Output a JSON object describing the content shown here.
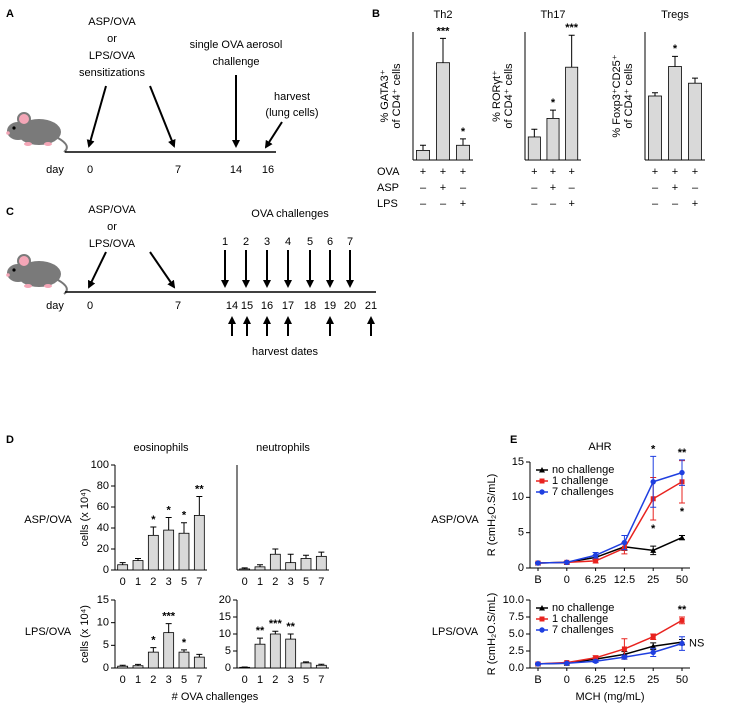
{
  "panel_letters": [
    "A",
    "B",
    "C",
    "D",
    "E"
  ],
  "panel_a": {
    "sensitization_label": [
      "ASP/OVA",
      "or",
      "LPS/OVA",
      "sensitizations"
    ],
    "challenge_label": [
      "single OVA aerosol",
      "challenge"
    ],
    "harvest_label": [
      "harvest",
      "(lung cells)"
    ],
    "day_label": "day",
    "days": [
      "0",
      "7",
      "14",
      "16"
    ]
  },
  "panel_b": {
    "condition_labels": [
      "OVA",
      "ASP",
      "LPS"
    ],
    "signs": [
      [
        "+",
        "+",
        "+"
      ],
      [
        "–",
        "+",
        "–"
      ],
      [
        "–",
        "–",
        "+"
      ]
    ]
  },
  "panel_c": {
    "treatment_label": [
      "ASP/OVA",
      "or",
      "LPS/OVA"
    ],
    "challenges_label": "OVA challenges",
    "challenge_numbers": [
      "1",
      "2",
      "3",
      "4",
      "5",
      "6",
      "7"
    ],
    "day_label": "day",
    "days": [
      "0",
      "7",
      "14",
      "15",
      "16",
      "17",
      "18",
      "19",
      "20",
      "21"
    ],
    "harvest_label": "harvest dates"
  },
  "panel_d": {
    "rows": [
      "ASP/OVA",
      "LPS/OVA"
    ],
    "xlabel": "# OVA challenges"
  },
  "panel_e": {
    "rows": [
      "ASP/OVA",
      "LPS/OVA"
    ],
    "xlabel": "MCH (mg/mL)"
  },
  "chart_data": [
    {
      "type": "bar",
      "title": "Th2",
      "ylabel": [
        "% GATA3⁺",
        "of CD4⁺ cells"
      ],
      "values": [
        1.5,
        15.2,
        2.3
      ],
      "errors": [
        0.8,
        3.8,
        1.0
      ],
      "ylim": [
        0,
        20
      ],
      "annotations": [
        null,
        "***",
        "*"
      ],
      "color": "#d9d9d9"
    },
    {
      "type": "bar",
      "title": "Th17",
      "ylabel": [
        "% RORγt⁺",
        "of CD4⁺ cells"
      ],
      "values": [
        3.6,
        6.5,
        14.5
      ],
      "errors": [
        1.2,
        1.3,
        5.0
      ],
      "ylim": [
        0,
        20
      ],
      "annotations": [
        null,
        "*",
        "***"
      ],
      "color": "#d9d9d9"
    },
    {
      "type": "bar",
      "title": "Tregs",
      "ylabel": [
        "% Foxp3⁺CD25⁺",
        "of CD4⁺ cells"
      ],
      "values": [
        10.0,
        14.6,
        12.0
      ],
      "errors": [
        0.5,
        1.6,
        0.8
      ],
      "ylim": [
        0,
        20
      ],
      "annotations": [
        null,
        "*",
        null
      ],
      "color": "#d9d9d9"
    },
    {
      "type": "bar",
      "title": "eosinophils",
      "ylabel": "cells (x 10⁴)",
      "categories": [
        "0",
        "1",
        "2",
        "3",
        "5",
        "7"
      ],
      "values": [
        5,
        9,
        33,
        38,
        35,
        52
      ],
      "errors": [
        2,
        2,
        8,
        12,
        10,
        18
      ],
      "ylim": [
        0,
        100
      ],
      "yticks": [
        0,
        20,
        40,
        60,
        80,
        100
      ],
      "annotations": [
        null,
        null,
        "*",
        "*",
        "*",
        "**"
      ],
      "color": "#d9d9d9"
    },
    {
      "type": "bar",
      "title": "neutrophils",
      "categories": [
        "0",
        "1",
        "2",
        "3",
        "5",
        "7"
      ],
      "values": [
        1,
        3,
        15,
        7,
        11,
        13
      ],
      "errors": [
        1,
        2,
        5,
        8,
        3,
        4
      ],
      "ylim": [
        0,
        100
      ],
      "color": "#d9d9d9"
    },
    {
      "type": "bar",
      "ylabel": "cells (x 10⁴)",
      "categories": [
        "0",
        "1",
        "2",
        "3",
        "5",
        "7"
      ],
      "values": [
        0.4,
        0.5,
        3.5,
        7.8,
        3.5,
        2.4
      ],
      "errors": [
        0.2,
        0.3,
        1.0,
        2.0,
        0.5,
        0.6
      ],
      "ylim": [
        0,
        15
      ],
      "yticks": [
        0,
        5,
        10,
        15
      ],
      "annotations": [
        null,
        null,
        "*",
        "***",
        "*",
        null
      ],
      "color": "#d9d9d9"
    },
    {
      "type": "bar",
      "categories": [
        "0",
        "1",
        "2",
        "3",
        "5",
        "7"
      ],
      "values": [
        0.2,
        7,
        10,
        8.5,
        1.5,
        0.8
      ],
      "errors": [
        0.1,
        1.8,
        0.8,
        1.5,
        0.3,
        0.3
      ],
      "ylim": [
        0,
        20
      ],
      "yticks": [
        0,
        5,
        10,
        15,
        20
      ],
      "annotations": [
        null,
        "**",
        "***",
        "**",
        null,
        null
      ],
      "color": "#d9d9d9"
    },
    {
      "type": "line",
      "title": "AHR",
      "ylabel": "R (cmH₂O.S/mL)",
      "categories": [
        "B",
        "0",
        "6.25",
        "12.5",
        "25",
        "50"
      ],
      "ylim": [
        0,
        15
      ],
      "yticks": [
        0,
        5,
        10,
        15
      ],
      "legend": "upper left",
      "series": [
        {
          "name": "no challenge",
          "color": "#000000",
          "marker": "triangle",
          "values": [
            0.7,
            0.8,
            1.5,
            3.0,
            2.5,
            4.3
          ],
          "errors": [
            0.1,
            0.1,
            0.3,
            0.5,
            0.6,
            0.3
          ]
        },
        {
          "name": "1 challenge",
          "color": "#e8231f",
          "marker": "square",
          "values": [
            0.7,
            0.8,
            1.0,
            2.8,
            9.8,
            12.2
          ],
          "errors": [
            0.1,
            0.1,
            0.3,
            0.8,
            3.0,
            3.0
          ]
        },
        {
          "name": "7 challenges",
          "color": "#1f3fe0",
          "marker": "circle",
          "values": [
            0.7,
            0.8,
            1.8,
            3.6,
            12.2,
            13.5
          ],
          "errors": [
            0.1,
            0.1,
            0.4,
            1.0,
            3.6,
            1.8
          ]
        }
      ],
      "annotations": [
        {
          "text": "*",
          "series": 2,
          "index": 4,
          "color": "#4a78c8"
        },
        {
          "text": "**",
          "series": 2,
          "index": 5,
          "color": "#4a78c8"
        },
        {
          "text": "*",
          "series": 1,
          "index": 4,
          "position": "below"
        },
        {
          "text": "*",
          "series": 1,
          "index": 5,
          "position": "below"
        }
      ]
    },
    {
      "type": "line",
      "ylabel": "R (cmH₂O.S/mL)",
      "categories": [
        "B",
        "0",
        "6.25",
        "12.5",
        "25",
        "50"
      ],
      "ylim": [
        0,
        10
      ],
      "yticks": [
        {
          "value": 0,
          "label": "0.0"
        },
        2.5,
        {
          "value": 5,
          "label": "5.0"
        },
        7.5,
        {
          "value": 10,
          "label": "10.0"
        }
      ],
      "legend": "upper left",
      "series": [
        {
          "name": "no challenge",
          "color": "#000000",
          "marker": "triangle",
          "values": [
            0.6,
            0.7,
            1.3,
            2.0,
            3.2,
            3.8
          ],
          "errors": [
            0.1,
            0.1,
            0.2,
            0.4,
            0.5,
            0.4
          ]
        },
        {
          "name": "1 challenge",
          "color": "#e8231f",
          "marker": "square",
          "values": [
            0.6,
            0.8,
            1.5,
            2.8,
            4.6,
            7.0
          ],
          "errors": [
            0.1,
            0.1,
            0.3,
            1.5,
            0.4,
            0.5
          ]
        },
        {
          "name": "7 challenges",
          "color": "#1f3fe0",
          "marker": "circle",
          "values": [
            0.6,
            0.7,
            1.0,
            1.6,
            2.3,
            3.6
          ],
          "errors": [
            0.1,
            0.1,
            0.2,
            0.3,
            0.6,
            1.0
          ]
        }
      ],
      "annotations": [
        {
          "text": "**",
          "series": 1,
          "index": 5
        },
        {
          "text": "NS",
          "series": 2,
          "index": 5,
          "position": "right",
          "color": "#6a5acd"
        }
      ]
    }
  ]
}
